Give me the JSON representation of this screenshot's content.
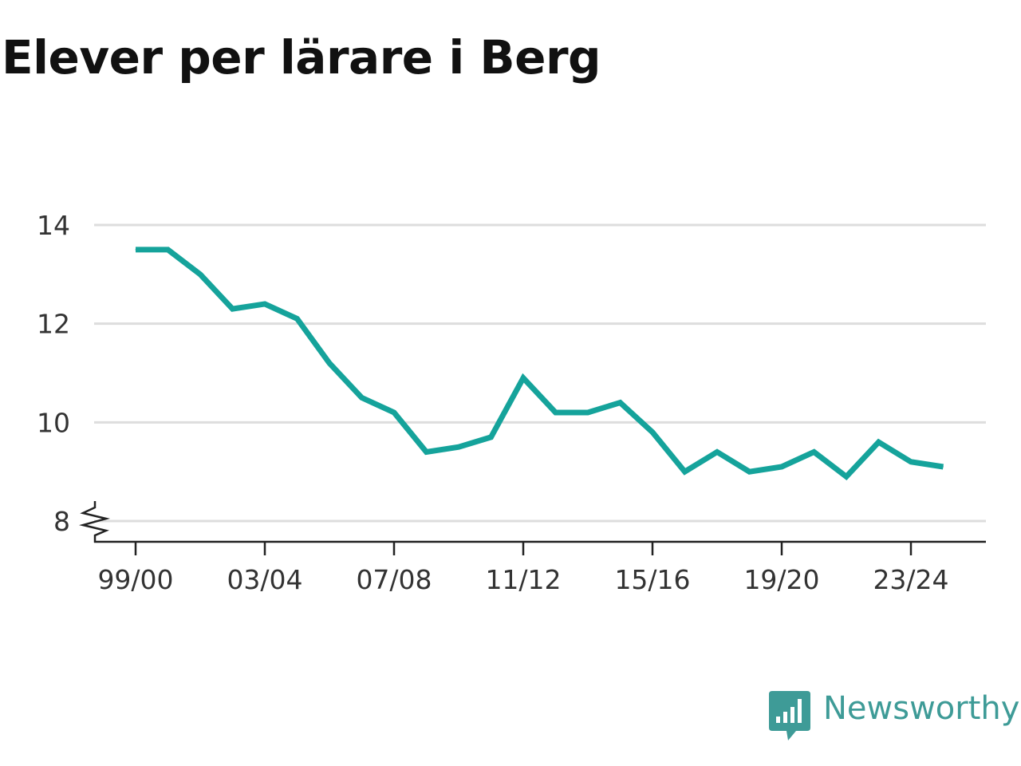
{
  "title": "Elever per lärare i Berg",
  "brand": {
    "name": "Newsworthy",
    "icon": "bar-chart-speech-bubble-icon",
    "color": "#3e9b97"
  },
  "chart_data": {
    "type": "line",
    "title": "Elever per lärare i Berg",
    "xlabel": "",
    "ylabel": "",
    "x": [
      "99/00",
      "00/01",
      "01/02",
      "02/03",
      "03/04",
      "04/05",
      "05/06",
      "06/07",
      "07/08",
      "08/09",
      "09/10",
      "10/11",
      "11/12",
      "12/13",
      "13/14",
      "14/15",
      "15/16",
      "16/17",
      "17/18",
      "18/19",
      "19/20",
      "20/21",
      "21/22",
      "22/23",
      "23/24",
      "24/25"
    ],
    "x_tick_labels": [
      "99/00",
      "03/04",
      "07/08",
      "11/12",
      "15/16",
      "19/20",
      "23/24"
    ],
    "series": [
      {
        "color": "#15a39b",
        "values": [
          13.5,
          13.5,
          13.0,
          12.3,
          12.4,
          12.1,
          11.2,
          10.5,
          10.2,
          9.4,
          9.5,
          9.7,
          10.9,
          10.2,
          10.2,
          10.4,
          9.8,
          9.0,
          9.4,
          9.0,
          9.1,
          9.4,
          8.9,
          9.6,
          9.2,
          9.1
        ]
      }
    ],
    "y_ticks": [
      8,
      10,
      12,
      14
    ],
    "ylim": [
      8,
      14
    ],
    "axis_break": true,
    "grid": true,
    "legend": "none"
  }
}
